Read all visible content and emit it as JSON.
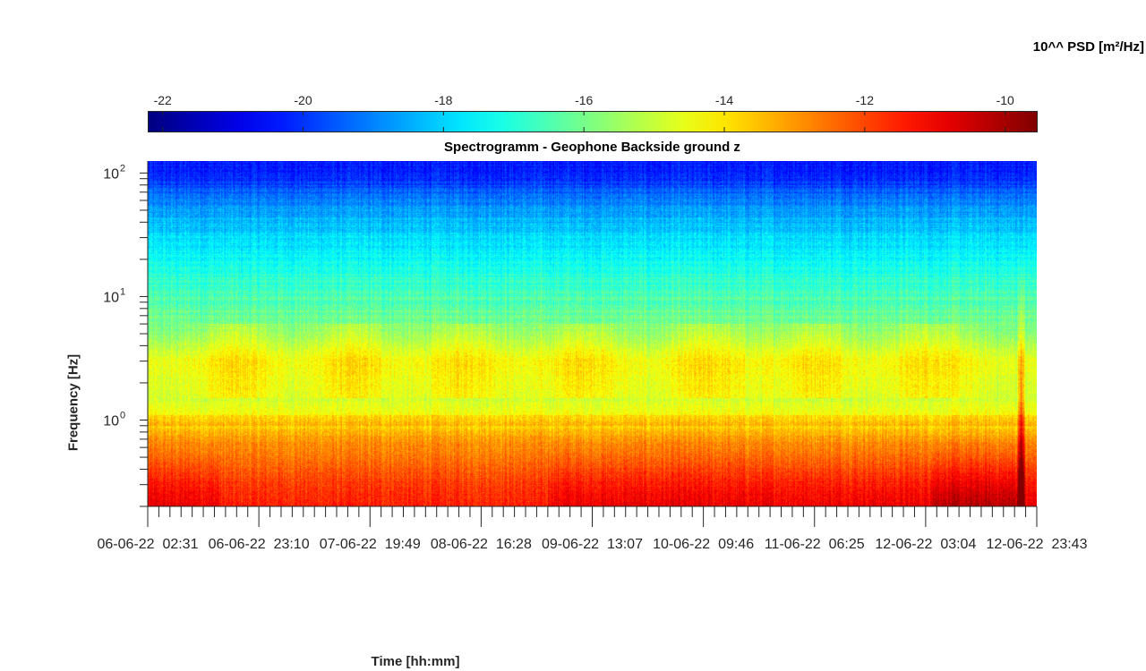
{
  "colorbar": {
    "title": "10^^ PSD [m²/Hz]",
    "tick_labels": [
      "-22",
      "-20",
      "-18",
      "-16",
      "-14",
      "-12",
      "-10"
    ],
    "tick_values": [
      -22,
      -20,
      -18,
      -16,
      -14,
      -12,
      -10
    ],
    "range": [
      -22.2,
      -9.55
    ],
    "colormap": "jet"
  },
  "chart_data": {
    "type": "heatmap",
    "title": "Spectrogramm - Geophone Backside ground z",
    "xlabel": "Time [hh:mm]",
    "ylabel": "Frequency [Hz]",
    "x_tick_labels": [
      "06-06-22  02:31",
      "06-06-22  23:10",
      "07-06-22  19:49",
      "08-06-22  16:28",
      "09-06-22  13:07",
      "10-06-22  09:46",
      "11-06-22  06:25",
      "12-06-22  03:04",
      "12-06-22  23:43"
    ],
    "x_range": [
      "06-06-22  02:31",
      "12-06-22  23:43"
    ],
    "y_scale": "log",
    "y_range_hz": [
      0.2,
      125
    ],
    "y_ticks": [
      {
        "value": 1,
        "base": "10",
        "exp": "0"
      },
      {
        "value": 10,
        "base": "10",
        "exp": "1"
      },
      {
        "value": 100,
        "base": "10",
        "exp": "2"
      }
    ],
    "psd_profile_log10": [
      {
        "freq_hz": 0.2,
        "psd": -10.6
      },
      {
        "freq_hz": 0.3,
        "psd": -11.2
      },
      {
        "freq_hz": 0.5,
        "psd": -12.3
      },
      {
        "freq_hz": 0.7,
        "psd": -13.0
      },
      {
        "freq_hz": 1.0,
        "psd": -14.1
      },
      {
        "freq_hz": 1.5,
        "psd": -14.9
      },
      {
        "freq_hz": 3.0,
        "psd": -14.6
      },
      {
        "freq_hz": 5.0,
        "psd": -15.8
      },
      {
        "freq_hz": 10,
        "psd": -16.5
      },
      {
        "freq_hz": 20,
        "psd": -17.4
      },
      {
        "freq_hz": 50,
        "psd": -18.6
      },
      {
        "freq_hz": 100,
        "psd": -20.3
      }
    ],
    "events": [
      {
        "time": "12-06-22  ~19:00",
        "description": "broadband spike",
        "psd_max": -9.7
      }
    ]
  }
}
